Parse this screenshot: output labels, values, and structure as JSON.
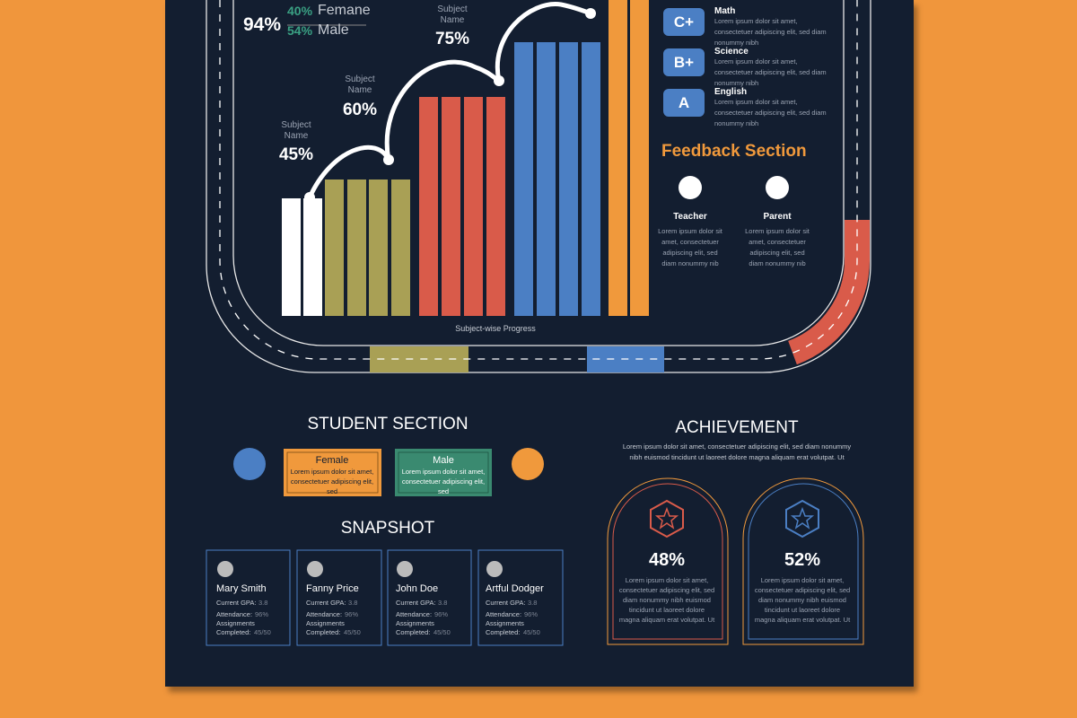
{
  "gender": {
    "total": "94%",
    "items": [
      {
        "pct": "40%",
        "label": "Femane"
      },
      {
        "pct": "54%",
        "label": "Male"
      }
    ]
  },
  "progress": {
    "title": "Subject-wise Progress",
    "subjects": [
      {
        "caption": "Subject Name",
        "value": "45%"
      },
      {
        "caption": "Subject Name",
        "value": "60%"
      },
      {
        "caption": "Subject Name",
        "value": "75%"
      }
    ]
  },
  "grades": {
    "items": [
      {
        "grade": "C+",
        "subject": "Math",
        "text": "Lorem ipsum dolor sit amet, consectetuer adipiscing elit, sed diam nonummy nibh"
      },
      {
        "grade": "B+",
        "subject": "Science",
        "text": "Lorem ipsum dolor sit amet, consectetuer adipiscing elit, sed diam nonummy nibh"
      },
      {
        "grade": "A",
        "subject": "English",
        "text": "Lorem ipsum dolor sit amet, consectetuer adipiscing elit, sed diam nonummy nibh"
      }
    ]
  },
  "feedback": {
    "title": "Feedback Section",
    "items": [
      {
        "name": "Teacher",
        "text": "Lorem ipsum dolor sit amet, consectetuer adipiscing elit, sed diam nonummy nib"
      },
      {
        "name": "Parent",
        "text": "Lorem ipsum dolor sit amet, consectetuer adipiscing elit, sed diam nonummy nib"
      }
    ]
  },
  "student_section": {
    "title": "STUDENT SECTION",
    "cards": [
      {
        "label": "Female",
        "text": "Lorem ipsum dolor sit amet, consectetuer adipiscing elit, sed"
      },
      {
        "label": "Male",
        "text": "Lorem ipsum dolor sit amet, consectetuer adipiscing elit, sed"
      }
    ]
  },
  "snapshot": {
    "title": "SNAPSHOT",
    "students": [
      {
        "name": "Mary Smith",
        "gpa_label": "Current GPA:",
        "gpa": "3.8",
        "attendance_label": "Attendance:",
        "attendance": "96%",
        "assign_label": "Assignments Completed:",
        "assign": "45/50"
      },
      {
        "name": "Fanny Price",
        "gpa_label": "Current GPA:",
        "gpa": "3.8",
        "attendance_label": "Attendance:",
        "attendance": "96%",
        "assign_label": "Assignments Completed:",
        "assign": "45/50"
      },
      {
        "name": "John Doe",
        "gpa_label": "Current GPA:",
        "gpa": "3.8",
        "attendance_label": "Attendance:",
        "attendance": "96%",
        "assign_label": "Assignments Completed:",
        "assign": "45/50"
      },
      {
        "name": "Artful Dodger",
        "gpa_label": "Current GPA:",
        "gpa": "3.8",
        "attendance_label": "Attendance:",
        "attendance": "96%",
        "assign_label": "Assignments Completed:",
        "assign": "45/50"
      }
    ]
  },
  "achievement": {
    "title": "ACHIEVEMENT",
    "text": "Lorem ipsum dolor sit amet, consectetuer adipiscing elit, sed diam nonummy nibh euismod tincidunt ut laoreet dolore magna aliquam erat volutpat. Ut",
    "cards": [
      {
        "value": "48%",
        "text": "Lorem ipsum dolor sit amet, consectetuer adipiscing elit, sed diam nonummy nibh euismod tincidunt ut laoreet dolore magna aliquam erat volutpat. Ut"
      },
      {
        "value": "52%",
        "text": "Lorem ipsum dolor sit amet, consectetuer adipiscing elit, sed diam nonummy nibh euismod tincidunt ut laoreet dolore magna aliquam erat volutpat. Ut"
      }
    ]
  }
}
